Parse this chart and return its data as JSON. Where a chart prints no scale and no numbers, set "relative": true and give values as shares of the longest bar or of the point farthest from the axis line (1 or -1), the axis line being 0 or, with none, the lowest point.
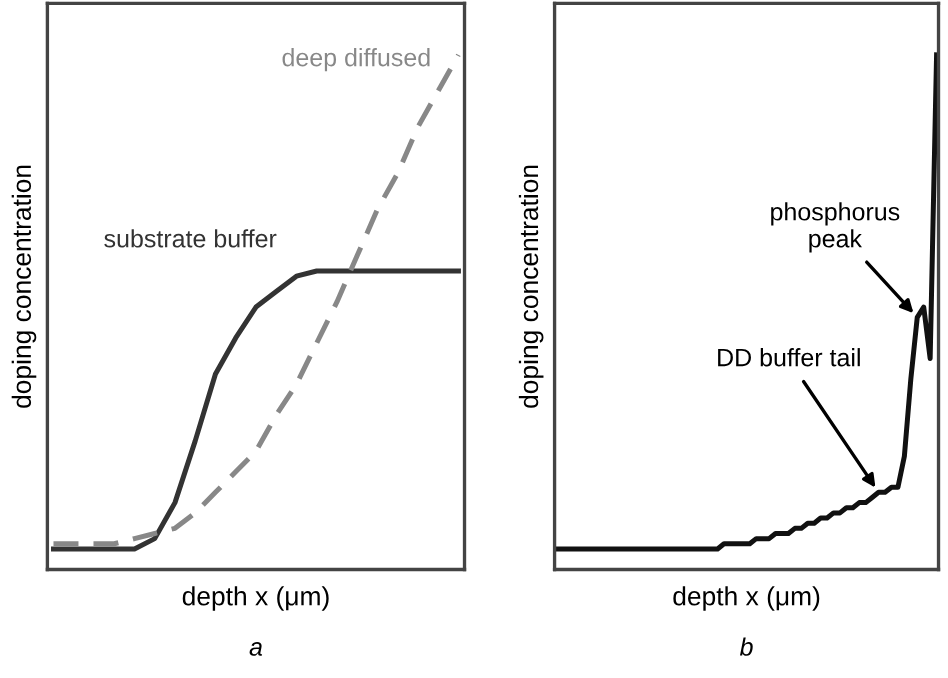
{
  "chart_data": [
    {
      "type": "line",
      "relative": true,
      "legend": false,
      "xlabel": "depth x (μm)",
      "ylabel": "doping concentration",
      "annotations": [
        "a"
      ],
      "categories": [
        null,
        null,
        null,
        null,
        null,
        null,
        null,
        null,
        null,
        null,
        null,
        null,
        null,
        null,
        null,
        null,
        null,
        null,
        null,
        null,
        null
      ],
      "series": [
        {
          "name": "substrate buffer",
          "color": "#333333",
          "line_style": "solid",
          "values": [
            0.04,
            0.04,
            0.04,
            0.04,
            0.04,
            0.06,
            0.13,
            0.25,
            0.38,
            0.45,
            0.51,
            0.54,
            0.57,
            0.58,
            0.58,
            0.58,
            0.58,
            0.58,
            0.58,
            0.58,
            0.58
          ]
        },
        {
          "name": "deep diffused",
          "color": "#888888",
          "line_style": "dashed",
          "values": [
            0.05,
            0.05,
            0.05,
            0.05,
            0.06,
            0.07,
            0.08,
            0.11,
            0.15,
            0.19,
            0.23,
            0.3,
            0.36,
            0.44,
            0.52,
            0.61,
            0.7,
            0.77,
            0.86,
            0.93,
            1
          ]
        }
      ]
    },
    {
      "type": "line",
      "relative": true,
      "legend": false,
      "xlabel": "depth x (μm)",
      "ylabel": "doping concentration",
      "annotations": [
        {
          "text": "DD buffer tail"
        },
        {
          "text": "phosphorus\npeak"
        },
        "b"
      ],
      "categories": [
        null,
        null,
        null,
        null,
        null,
        null,
        null,
        null,
        null,
        null,
        null,
        null,
        null,
        null,
        null,
        null,
        null,
        null,
        null,
        null,
        null,
        null,
        null,
        null,
        null,
        null,
        null,
        null,
        null,
        null,
        null,
        null,
        null,
        null,
        null,
        null,
        null,
        null,
        null,
        null,
        null,
        null,
        null,
        null,
        null,
        null,
        null,
        null,
        null,
        null,
        null,
        null,
        null,
        null,
        null,
        null,
        null,
        null,
        null,
        null
      ],
      "series": [
        {
          "color": "#111111",
          "line_style": "solid",
          "values": [
            0.04,
            0.04,
            0.04,
            0.04,
            0.04,
            0.04,
            0.04,
            0.04,
            0.04,
            0.04,
            0.04,
            0.04,
            0.04,
            0.04,
            0.04,
            0.04,
            0.04,
            0.04,
            0.04,
            0.04,
            0.04,
            0.04,
            0.04,
            0.04,
            0.04,
            0.04,
            0.05,
            0.05,
            0.05,
            0.05,
            0.05,
            0.06,
            0.06,
            0.06,
            0.07,
            0.07,
            0.07,
            0.08,
            0.08,
            0.09,
            0.09,
            0.1,
            0.1,
            0.11,
            0.11,
            0.12,
            0.12,
            0.13,
            0.13,
            0.14,
            0.15,
            0.15,
            0.16,
            0.16,
            0.22,
            0.37,
            0.49,
            0.51,
            0.41,
            1
          ]
        }
      ]
    }
  ]
}
